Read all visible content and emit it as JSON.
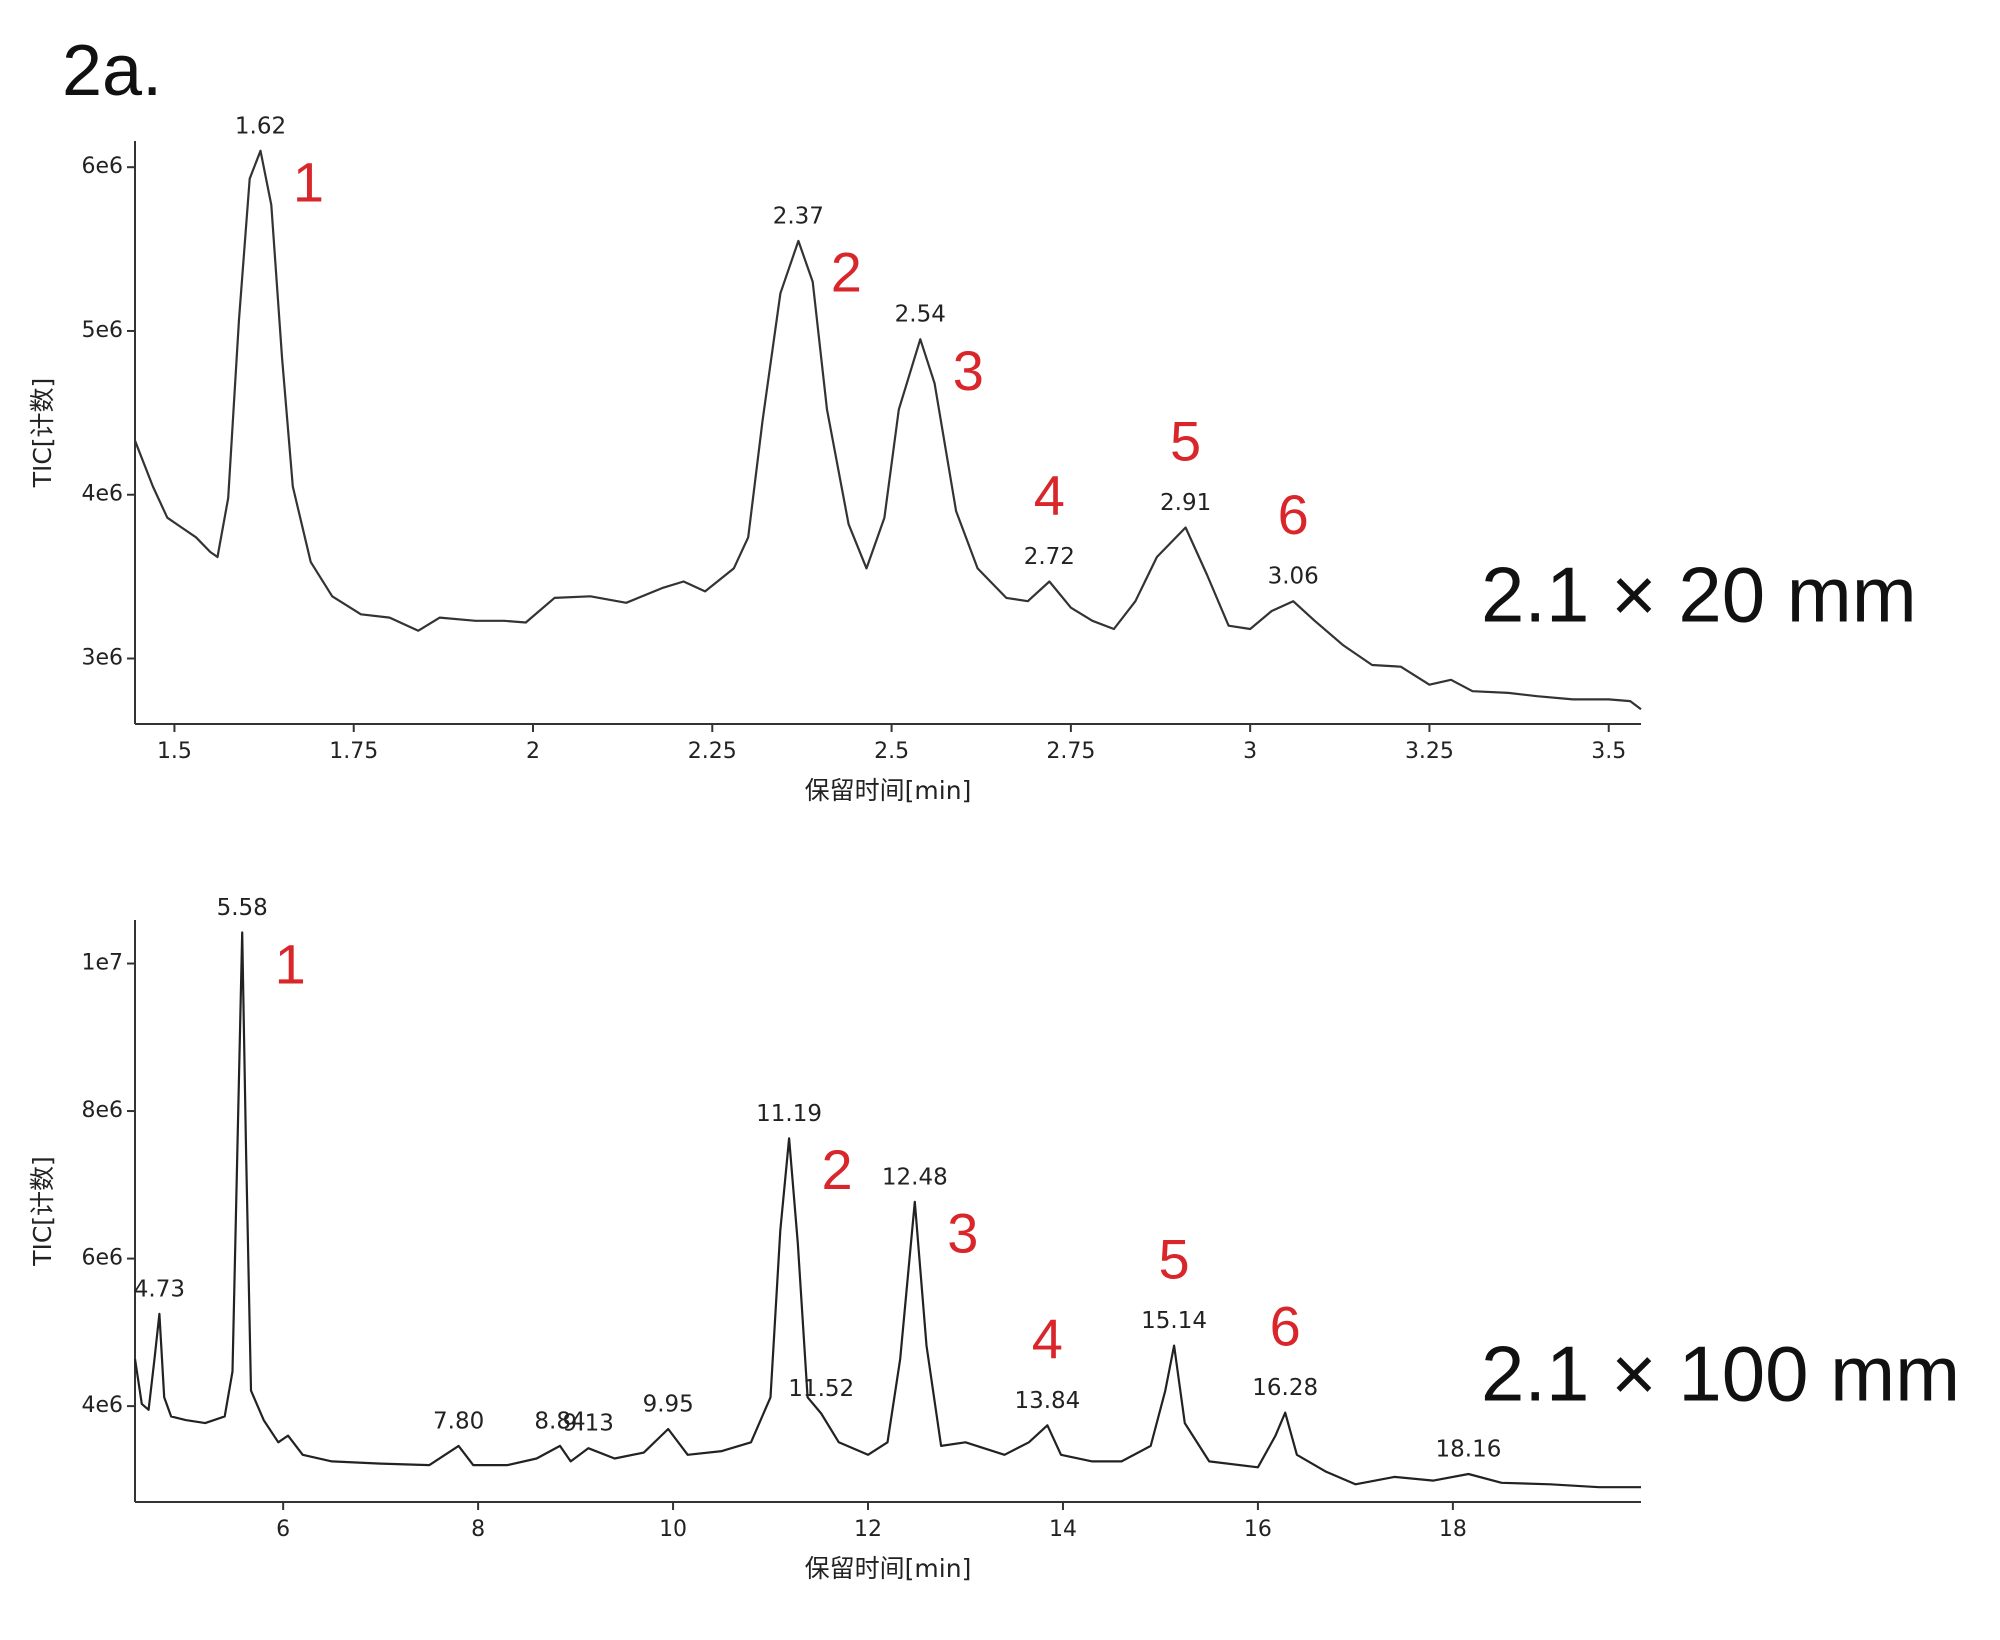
{
  "title": "2a.",
  "chart_data": [
    {
      "type": "line",
      "color": "#333333",
      "xlabel": "保留时间[min]",
      "ylabel": "TIC[计数]",
      "annotation": "2.1 × 20 mm",
      "xlim": [
        1.445,
        3.545
      ],
      "xticks": [
        1.5,
        1.75,
        2,
        2.25,
        2.5,
        2.75,
        3,
        3.25,
        3.5
      ],
      "ylim": [
        2600000,
        6160000
      ],
      "yticks": [
        {
          "value": 3000000,
          "label": "3e6"
        },
        {
          "value": 4000000,
          "label": "4e6"
        },
        {
          "value": 5000000,
          "label": "5e6"
        },
        {
          "value": 6000000,
          "label": "6e6"
        }
      ],
      "x": [
        1.445,
        1.47,
        1.49,
        1.51,
        1.53,
        1.55,
        1.56,
        1.575,
        1.59,
        1.605,
        1.62,
        1.635,
        1.65,
        1.665,
        1.69,
        1.72,
        1.76,
        1.8,
        1.84,
        1.87,
        1.92,
        1.96,
        1.99,
        2.03,
        2.08,
        2.13,
        2.18,
        2.21,
        2.24,
        2.28,
        2.3,
        2.32,
        2.345,
        2.37,
        2.39,
        2.41,
        2.44,
        2.465,
        2.49,
        2.51,
        2.54,
        2.56,
        2.59,
        2.62,
        2.66,
        2.69,
        2.72,
        2.75,
        2.78,
        2.81,
        2.84,
        2.87,
        2.91,
        2.94,
        2.97,
        3.0,
        3.03,
        3.06,
        3.09,
        3.13,
        3.17,
        3.21,
        3.25,
        3.28,
        3.31,
        3.36,
        3.4,
        3.45,
        3.5,
        3.53,
        3.545
      ],
      "values": [
        4330000,
        4050000,
        3860000,
        3800000,
        3740000,
        3650000,
        3620000,
        3980000,
        5070000,
        5930000,
        6100000,
        5770000,
        4840000,
        4050000,
        3590000,
        3380000,
        3270000,
        3250000,
        3170000,
        3250000,
        3230000,
        3230000,
        3220000,
        3370000,
        3380000,
        3340000,
        3430000,
        3470000,
        3410000,
        3550000,
        3740000,
        4450000,
        5230000,
        5550000,
        5300000,
        4520000,
        3820000,
        3550000,
        3860000,
        4520000,
        4950000,
        4680000,
        3900000,
        3550000,
        3370000,
        3350000,
        3470000,
        3310000,
        3230000,
        3180000,
        3350000,
        3620000,
        3800000,
        3510000,
        3200000,
        3180000,
        3290000,
        3350000,
        3230000,
        3080000,
        2960000,
        2950000,
        2840000,
        2870000,
        2800000,
        2790000,
        2770000,
        2750000,
        2750000,
        2740000,
        2690000
      ],
      "peaks": [
        {
          "x": 1.62,
          "y": 6100000,
          "label": "1.62",
          "number": "1"
        },
        {
          "x": 2.37,
          "y": 5550000,
          "label": "2.37",
          "number": "2"
        },
        {
          "x": 2.54,
          "y": 4950000,
          "label": "2.54",
          "number": "3"
        },
        {
          "x": 2.72,
          "y": 3470000,
          "label": "2.72",
          "number": "4"
        },
        {
          "x": 2.91,
          "y": 3800000,
          "label": "2.91",
          "number": "5"
        },
        {
          "x": 3.06,
          "y": 3350000,
          "label": "3.06",
          "number": "6"
        }
      ]
    },
    {
      "type": "line",
      "color": "#222222",
      "xlabel": "保留时间[min]",
      "ylabel": "TIC[计数]",
      "annotation": "2.1 × 100 mm",
      "xlim": [
        4.48,
        19.93
      ],
      "xticks": [
        6,
        8,
        10,
        12,
        14,
        16,
        18
      ],
      "ylim": [
        2700000,
        10590000
      ],
      "yticks": [
        {
          "value": 4000000,
          "label": "4e6"
        },
        {
          "value": 6000000,
          "label": "6e6"
        },
        {
          "value": 8000000,
          "label": "8e6"
        },
        {
          "value": 10000000,
          "label": "1e7"
        }
      ],
      "x": [
        4.48,
        4.55,
        4.62,
        4.68,
        4.73,
        4.78,
        4.85,
        5.0,
        5.2,
        5.4,
        5.48,
        5.53,
        5.58,
        5.62,
        5.67,
        5.8,
        5.95,
        6.05,
        6.2,
        6.5,
        7.0,
        7.5,
        7.8,
        7.95,
        8.3,
        8.6,
        8.84,
        8.95,
        9.13,
        9.4,
        9.7,
        9.95,
        10.15,
        10.5,
        10.8,
        11.0,
        11.1,
        11.19,
        11.28,
        11.38,
        11.52,
        11.7,
        12.0,
        12.2,
        12.33,
        12.48,
        12.6,
        12.75,
        13.0,
        13.4,
        13.65,
        13.84,
        13.98,
        14.3,
        14.6,
        14.9,
        15.05,
        15.14,
        15.25,
        15.5,
        16.0,
        16.18,
        16.28,
        16.4,
        16.7,
        17.0,
        17.4,
        17.8,
        18.16,
        18.5,
        19.0,
        19.5,
        19.93
      ],
      "values": [
        4640000,
        4030000,
        3950000,
        4640000,
        5250000,
        4120000,
        3860000,
        3810000,
        3770000,
        3860000,
        4470000,
        7430000,
        10420000,
        7430000,
        4210000,
        3810000,
        3510000,
        3600000,
        3340000,
        3250000,
        3220000,
        3200000,
        3460000,
        3200000,
        3200000,
        3290000,
        3460000,
        3250000,
        3430000,
        3290000,
        3370000,
        3690000,
        3340000,
        3390000,
        3510000,
        4120000,
        6380000,
        7630000,
        6210000,
        4120000,
        3900000,
        3510000,
        3340000,
        3510000,
        4640000,
        6770000,
        4820000,
        3460000,
        3510000,
        3340000,
        3510000,
        3740000,
        3340000,
        3250000,
        3250000,
        3460000,
        4210000,
        4820000,
        3770000,
        3250000,
        3170000,
        3600000,
        3910000,
        3340000,
        3110000,
        2940000,
        3040000,
        2990000,
        3080000,
        2960000,
        2940000,
        2900000,
        2900000
      ],
      "peaks": [
        {
          "x": 4.73,
          "y": 5250000,
          "label": "4.73"
        },
        {
          "x": 5.58,
          "y": 10420000,
          "label": "5.58",
          "number": "1"
        },
        {
          "x": 7.8,
          "y": 3460000,
          "label": "7.80"
        },
        {
          "x": 8.84,
          "y": 3460000,
          "label": "8.84"
        },
        {
          "x": 9.13,
          "y": 3430000,
          "label": "9.13"
        },
        {
          "x": 9.95,
          "y": 3690000,
          "label": "9.95"
        },
        {
          "x": 11.19,
          "y": 7630000,
          "label": "11.19",
          "number": "2"
        },
        {
          "x": 11.52,
          "y": 3900000,
          "label": "11.52"
        },
        {
          "x": 12.48,
          "y": 6770000,
          "label": "12.48",
          "number": "3"
        },
        {
          "x": 13.84,
          "y": 3740000,
          "label": "13.84",
          "number": "4"
        },
        {
          "x": 15.14,
          "y": 4820000,
          "label": "15.14",
          "number": "5"
        },
        {
          "x": 16.28,
          "y": 3910000,
          "label": "16.28",
          "number": "6"
        },
        {
          "x": 18.16,
          "y": 3080000,
          "label": "18.16"
        }
      ]
    }
  ]
}
